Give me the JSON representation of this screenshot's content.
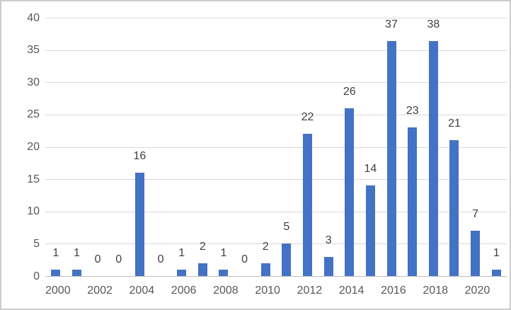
{
  "chart_data": {
    "type": "bar",
    "x": [
      2000,
      2001,
      2002,
      2003,
      2004,
      2005,
      2006,
      2007,
      2008,
      2009,
      2010,
      2011,
      2012,
      2013,
      2014,
      2015,
      2016,
      2017,
      2018,
      2019,
      2020,
      2021
    ],
    "values": [
      1,
      1,
      0,
      0,
      16,
      0,
      1,
      2,
      1,
      0,
      2,
      5,
      22,
      3,
      26,
      14,
      37,
      23,
      38,
      21,
      7,
      1
    ],
    "data_labels": [
      "1",
      "1",
      "0",
      "0",
      "16",
      "0",
      "1",
      "2",
      "1",
      "0",
      "2",
      "5",
      "22",
      "3",
      "26",
      "14",
      "37",
      "23",
      "38",
      "21",
      "7",
      "1"
    ],
    "title": "",
    "xlabel": "",
    "ylabel": "",
    "ylim": [
      0,
      40
    ],
    "yticks": [
      0,
      5,
      10,
      15,
      20,
      25,
      30,
      35,
      40
    ],
    "ytick_labels": [
      "0",
      "5",
      "10",
      "15",
      "20",
      "25",
      "30",
      "35",
      "40"
    ],
    "xtick_labels": [
      "2000",
      "2002",
      "2004",
      "2006",
      "2008",
      "2010",
      "2012",
      "2014",
      "2016",
      "2018",
      "2020"
    ],
    "x_tick_every": 2,
    "grid": "horizontal",
    "legend": "none",
    "colors": {
      "bar_fill": "#4472c4",
      "gridline": "#d9d9d9",
      "axis_line": "#bfbfbf",
      "axis_label_text": "#595959",
      "data_label_text": "#404040",
      "background": "#ffffff",
      "frame_border": "#cccccc"
    }
  }
}
